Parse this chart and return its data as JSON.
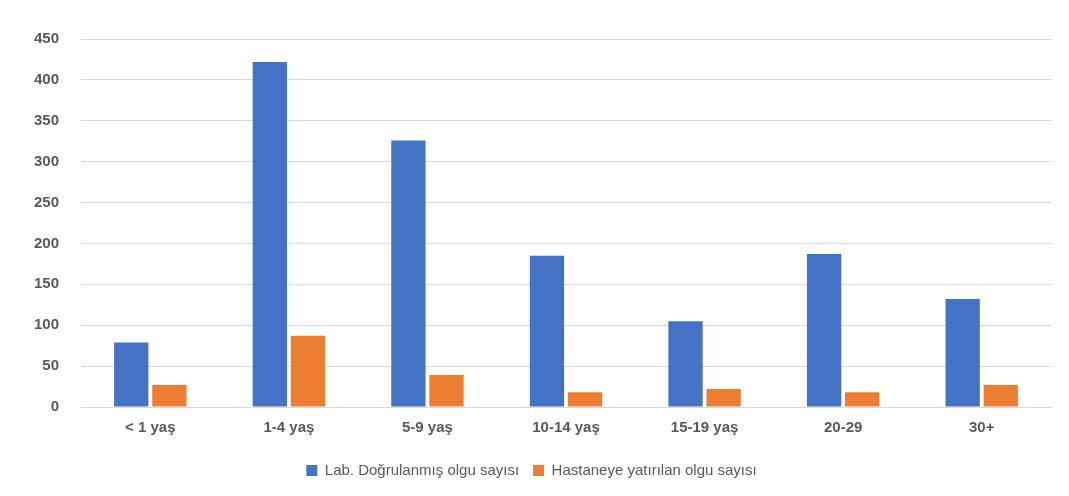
{
  "chart_data": {
    "type": "bar",
    "categories": [
      "< 1 yaş",
      "1-4 yaş",
      "5-9 yaş",
      "10-14 yaş",
      "15-19 yaş",
      "20-29",
      "30+"
    ],
    "series": [
      {
        "name": "Lab. Doğrulanmış olgu sayısı",
        "color": "#4472c4",
        "values": [
          79,
          422,
          326,
          185,
          105,
          187,
          132
        ]
      },
      {
        "name": "Hastaneye yatırılan olgu sayısı",
        "color": "#ed7d31",
        "values": [
          27,
          87,
          39,
          18,
          22,
          18,
          27
        ]
      }
    ],
    "ylim": [
      0,
      450
    ],
    "yticks": [
      0,
      50,
      100,
      150,
      200,
      250,
      300,
      350,
      400,
      450
    ],
    "grid": "y",
    "legend": "bottom"
  }
}
